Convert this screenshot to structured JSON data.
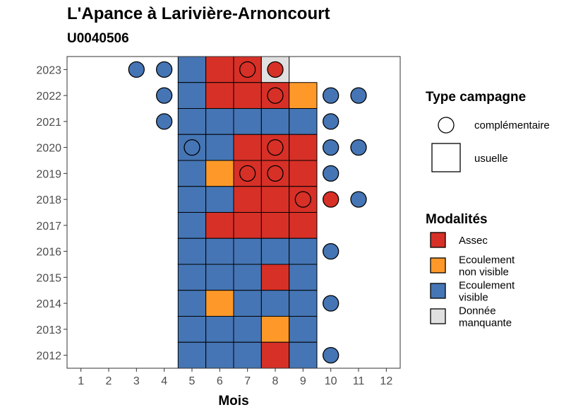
{
  "chart_data": {
    "type": "heatmap",
    "title": "L'Apance à Larivière-Arnoncourt",
    "subtitle": "U0040506",
    "xlabel": "Mois",
    "x_ticks": [
      "1",
      "2",
      "3",
      "4",
      "5",
      "6",
      "7",
      "8",
      "9",
      "10",
      "11",
      "12"
    ],
    "years": [
      2012,
      2013,
      2014,
      2015,
      2016,
      2017,
      2018,
      2019,
      2020,
      2021,
      2022,
      2023
    ],
    "colors": {
      "Assec": "#d73027",
      "Ecoulement non visible": "#fe9929",
      "Ecoulement visible": "#4575b4",
      "Donnée manquante": "#e0e0e0"
    },
    "usuelle": [
      {
        "year": 2023,
        "cells": [
          "Ecoulement visible",
          "Assec",
          "Assec",
          "Donnée manquante"
        ]
      },
      {
        "year": 2022,
        "cells": [
          "Ecoulement visible",
          "Assec",
          "Assec",
          "Assec",
          "Ecoulement non visible"
        ]
      },
      {
        "year": 2021,
        "cells": [
          "Ecoulement visible",
          "Ecoulement visible",
          "Ecoulement visible",
          "Ecoulement visible",
          "Ecoulement visible"
        ]
      },
      {
        "year": 2020,
        "cells": [
          "Ecoulement visible",
          "Ecoulement visible",
          "Assec",
          "Assec",
          "Assec"
        ]
      },
      {
        "year": 2019,
        "cells": [
          "Ecoulement visible",
          "Ecoulement non visible",
          "Assec",
          "Assec",
          "Assec"
        ]
      },
      {
        "year": 2018,
        "cells": [
          "Ecoulement visible",
          "Ecoulement visible",
          "Assec",
          "Assec",
          "Assec"
        ]
      },
      {
        "year": 2017,
        "cells": [
          "Ecoulement visible",
          "Assec",
          "Assec",
          "Assec",
          "Assec"
        ]
      },
      {
        "year": 2016,
        "cells": [
          "Ecoulement visible",
          "Ecoulement visible",
          "Ecoulement visible",
          "Ecoulement visible",
          "Ecoulement visible"
        ]
      },
      {
        "year": 2015,
        "cells": [
          "Ecoulement visible",
          "Ecoulement visible",
          "Ecoulement visible",
          "Assec",
          "Ecoulement visible"
        ]
      },
      {
        "year": 2014,
        "cells": [
          "Ecoulement visible",
          "Ecoulement non visible",
          "Ecoulement visible",
          "Ecoulement visible",
          "Ecoulement visible"
        ]
      },
      {
        "year": 2013,
        "cells": [
          "Ecoulement visible",
          "Ecoulement visible",
          "Ecoulement visible",
          "Ecoulement non visible",
          "Ecoulement visible"
        ]
      },
      {
        "year": 2012,
        "cells": [
          "Ecoulement visible",
          "Ecoulement visible",
          "Ecoulement visible",
          "Assec",
          "Ecoulement visible"
        ]
      }
    ],
    "usuelle_first_month": 5,
    "complementaire": [
      {
        "year": 2023,
        "month": 3,
        "modalite": "Ecoulement visible"
      },
      {
        "year": 2023,
        "month": 4,
        "modalite": "Ecoulement visible"
      },
      {
        "year": 2023,
        "month": 7,
        "modalite": "Assec"
      },
      {
        "year": 2023,
        "month": 8,
        "modalite": "Assec"
      },
      {
        "year": 2022,
        "month": 4,
        "modalite": "Ecoulement visible"
      },
      {
        "year": 2022,
        "month": 8,
        "modalite": "Assec"
      },
      {
        "year": 2022,
        "month": 10,
        "modalite": "Ecoulement visible"
      },
      {
        "year": 2022,
        "month": 11,
        "modalite": "Ecoulement visible"
      },
      {
        "year": 2021,
        "month": 4,
        "modalite": "Ecoulement visible"
      },
      {
        "year": 2021,
        "month": 10,
        "modalite": "Ecoulement visible"
      },
      {
        "year": 2020,
        "month": 5,
        "modalite": "Ecoulement visible"
      },
      {
        "year": 2020,
        "month": 8,
        "modalite": "Assec"
      },
      {
        "year": 2020,
        "month": 10,
        "modalite": "Ecoulement visible"
      },
      {
        "year": 2020,
        "month": 11,
        "modalite": "Ecoulement visible"
      },
      {
        "year": 2019,
        "month": 7,
        "modalite": "Assec"
      },
      {
        "year": 2019,
        "month": 8,
        "modalite": "Assec"
      },
      {
        "year": 2019,
        "month": 10,
        "modalite": "Ecoulement visible"
      },
      {
        "year": 2018,
        "month": 9,
        "modalite": "Assec"
      },
      {
        "year": 2018,
        "month": 10,
        "modalite": "Assec"
      },
      {
        "year": 2018,
        "month": 11,
        "modalite": "Ecoulement visible"
      },
      {
        "year": 2016,
        "month": 10,
        "modalite": "Ecoulement visible"
      },
      {
        "year": 2014,
        "month": 10,
        "modalite": "Ecoulement visible"
      },
      {
        "year": 2012,
        "month": 10,
        "modalite": "Ecoulement visible"
      }
    ]
  },
  "legend": {
    "type_title": "Type campagne",
    "type_items": [
      "complémentaire",
      "usuelle"
    ],
    "mod_title": "Modalités",
    "mod_items": [
      {
        "key": "Assec",
        "lines": [
          "Assec"
        ]
      },
      {
        "key": "Ecoulement non visible",
        "lines": [
          "Ecoulement",
          "non visible"
        ]
      },
      {
        "key": "Ecoulement visible",
        "lines": [
          "Ecoulement",
          "visible"
        ]
      },
      {
        "key": "Donnée manquante",
        "lines": [
          "Donnée",
          "manquante"
        ]
      }
    ]
  }
}
